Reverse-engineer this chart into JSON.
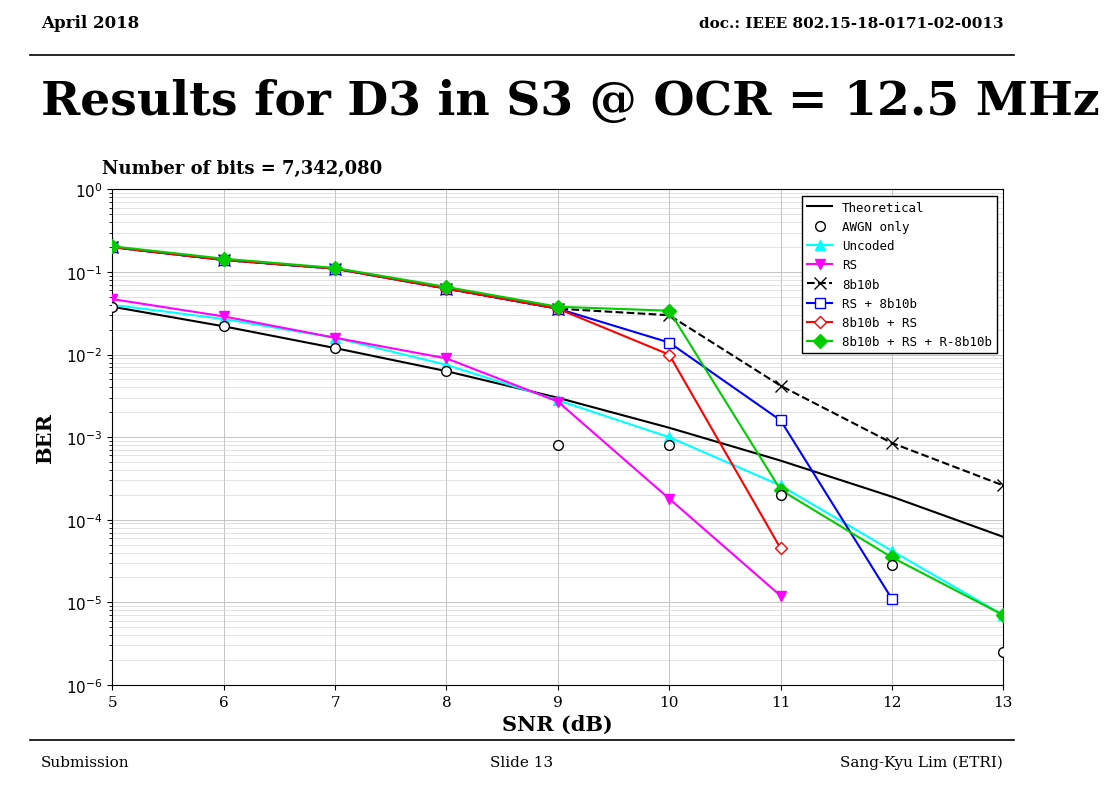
{
  "title": "Results for D3 in S3 @ OCR = 12.5 MHz",
  "subtitle": "Number of bits = 7,342,080",
  "header_left": "April 2018",
  "header_right": "doc.: IEEE 802.15-18-0171-02-0013",
  "footer_left": "Submission",
  "footer_center": "Slide 13",
  "footer_right": "Sang-Kyu Lim (ETRI)",
  "xlabel": "SNR (dB)",
  "ylabel": "BER",
  "xlim": [
    5,
    13
  ],
  "ylim_log": [
    -6,
    0
  ],
  "theoretical": {
    "snr": [
      5,
      6,
      7,
      8,
      9,
      10,
      11,
      12,
      13
    ],
    "ber": [
      0.038,
      0.022,
      0.012,
      0.0063,
      0.003,
      0.0013,
      0.00052,
      0.00019,
      6.2e-05
    ],
    "color": "#000000",
    "linestyle": "solid",
    "linewidth": 1.5,
    "label": "Theoretical"
  },
  "awgn_only": {
    "snr": [
      5,
      6,
      7,
      8,
      9,
      10,
      11,
      12,
      13
    ],
    "ber": [
      0.038,
      0.022,
      0.012,
      0.0063,
      0.0008,
      0.0008,
      0.0002,
      2.8e-05,
      2.5e-06
    ],
    "color": "#000000",
    "linestyle": "none",
    "marker": "o",
    "markersize": 7,
    "markerfacecolor": "white",
    "markeredgecolor": "#000000",
    "label": "AWGN only"
  },
  "uncoded": {
    "snr": [
      5,
      6,
      7,
      8,
      9,
      10,
      11,
      12,
      13
    ],
    "ber": [
      0.04,
      0.027,
      0.016,
      0.0075,
      0.0028,
      0.001,
      0.00026,
      4.2e-05,
      7e-06
    ],
    "color": "#00FFFF",
    "linestyle": "solid",
    "marker": "^",
    "markersize": 7,
    "linewidth": 1.5,
    "label": "Uncoded"
  },
  "rs": {
    "snr": [
      5,
      6,
      7,
      8,
      9,
      10,
      11
    ],
    "ber": [
      0.047,
      0.029,
      0.016,
      0.009,
      0.0027,
      0.00018,
      1.2e-05
    ],
    "color": "#FF00FF",
    "linestyle": "solid",
    "marker": "v",
    "markersize": 7,
    "linewidth": 1.5,
    "label": "RS"
  },
  "b8b10b": {
    "snr": [
      5,
      6,
      7,
      8,
      9,
      10,
      11,
      12,
      13
    ],
    "ber": [
      0.2,
      0.14,
      0.11,
      0.063,
      0.036,
      0.03,
      0.0042,
      0.00085,
      0.00026
    ],
    "color": "#000000",
    "linestyle": "dashed",
    "marker": "x",
    "markersize": 9,
    "linewidth": 1.5,
    "label": "8b10b"
  },
  "rs_8b10b": {
    "snr": [
      5,
      6,
      7,
      8,
      9,
      10,
      11,
      12
    ],
    "ber": [
      0.2,
      0.14,
      0.11,
      0.063,
      0.036,
      0.014,
      0.0016,
      1.1e-05
    ],
    "color": "#0000FF",
    "linestyle": "solid",
    "marker": "s",
    "markersize": 7,
    "linewidth": 1.5,
    "label": "RS + 8b10b"
  },
  "b8b10b_rs": {
    "snr": [
      5,
      6,
      7,
      8,
      9,
      10,
      11
    ],
    "ber": [
      0.2,
      0.14,
      0.11,
      0.063,
      0.036,
      0.01,
      4.5e-05
    ],
    "color": "#FF0000",
    "linestyle": "solid",
    "marker": "D",
    "markersize": 6,
    "linewidth": 1.5,
    "label": "8b10b + RS"
  },
  "b8b10b_rs_r8b10b": {
    "snr": [
      5,
      6,
      7,
      8,
      9,
      10,
      11,
      12,
      13
    ],
    "ber": [
      0.205,
      0.145,
      0.112,
      0.066,
      0.038,
      0.034,
      0.00023,
      3.5e-05,
      7e-06
    ],
    "color": "#00CC00",
    "linestyle": "solid",
    "marker": "D",
    "markersize": 7,
    "linewidth": 1.5,
    "label": "8b10b + RS + R-8b10b"
  }
}
